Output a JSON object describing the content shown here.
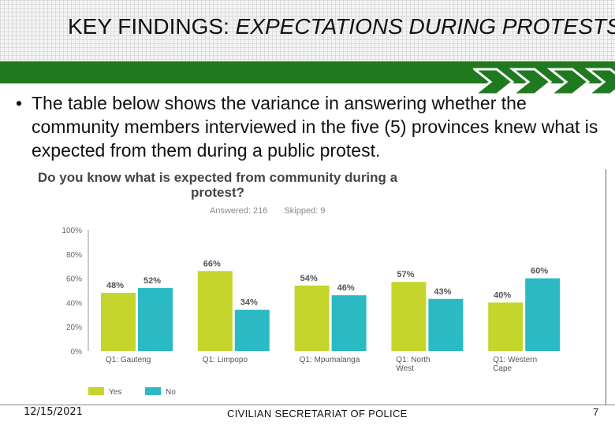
{
  "header": {
    "title_main": "KEY FINDINGS:",
    "title_italic": "EXPECTATIONS DURING PROTESTS"
  },
  "bullet": {
    "symbol": "•",
    "text": "The table below shows the variance in answering whether the community members interviewed in the five (5) provinces knew what is expected from them during a public protest."
  },
  "chart_data": {
    "type": "bar",
    "title": "Do you know what is expected from community during a protest?",
    "answered": "Answered: 216",
    "skipped": "Skipped: 9",
    "categories": [
      "Q1: Gauteng",
      "Q1: Limpopo",
      "Q1: Mpumalanga",
      "Q1: North West",
      "Q1: Western Cape"
    ],
    "series": [
      {
        "name": "Yes",
        "color": "#c5d52b",
        "values": [
          48,
          66,
          54,
          57,
          40
        ]
      },
      {
        "name": "No",
        "color": "#2bbac4",
        "values": [
          52,
          34,
          46,
          43,
          60
        ]
      }
    ],
    "value_labels": {
      "Yes": [
        "48%",
        "66%",
        "54%",
        "57%",
        "40%"
      ],
      "No": [
        "52%",
        "34%",
        "46%",
        "43%",
        "60%"
      ]
    },
    "y_ticks": [
      "0%",
      "20%",
      "40%",
      "60%",
      "80%",
      "100%"
    ],
    "ylim": [
      0,
      100
    ],
    "grid": false,
    "legend_position": "bottom-left"
  },
  "footer": {
    "date": "12/15/2021",
    "org": "CIVILIAN SECRETARIAT OF POLICE",
    "page": "7"
  },
  "colors": {
    "green_band": "#1f7a1f",
    "chevron": "#1f7a1f"
  }
}
